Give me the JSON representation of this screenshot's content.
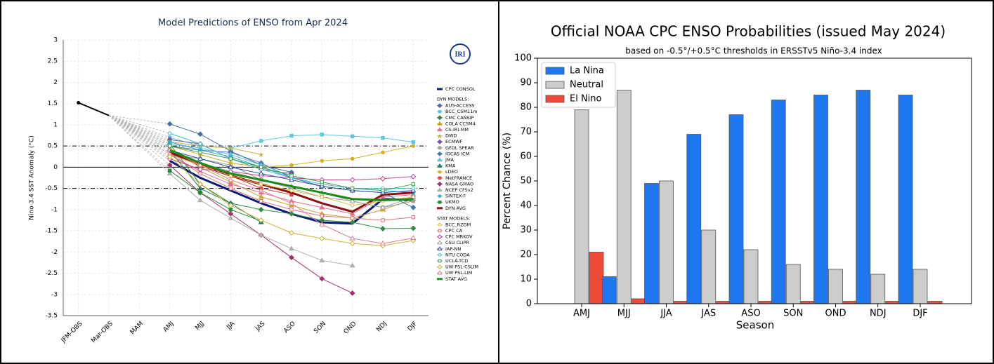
{
  "chart_data": [
    {
      "type": "line",
      "title": "Model Predictions of ENSO from Apr 2024",
      "ylabel": "Nino 3.4 SST Anomaly (°C)",
      "logo": "IRI",
      "categories": [
        "JFM-OBS",
        "Mar-OBS",
        "MAM",
        "AMJ",
        "MJJ",
        "JJA",
        "JAS",
        "ASO",
        "SON",
        "OND",
        "NDJ",
        "DJF"
      ],
      "ylim": [
        -3.5,
        3
      ],
      "yticks": [
        3,
        2.5,
        2,
        1.5,
        1,
        0.5,
        0,
        -0.5,
        -1,
        -1.5,
        -2,
        -2.5,
        -3,
        -3.5
      ],
      "grid": true,
      "zero_line": 0,
      "threshold_lines": [
        0.5,
        -0.5
      ],
      "observed": {
        "color": "#000000",
        "values": [
          1.52,
          1.22,
          null,
          null,
          null,
          null,
          null,
          null,
          null,
          null,
          null,
          null
        ]
      },
      "groups": [
        {
          "series": [
            {
              "name": "CPC CONSOL",
              "color": "#0a1a78",
              "marker": "none",
              "width": 3,
              "values": [
                null,
                null,
                null,
                0.15,
                -0.25,
                -0.55,
                -0.85,
                -1.1,
                -1.3,
                -1.33,
                -0.75,
                -0.78
              ]
            }
          ]
        },
        {
          "name": "DYN MODELS:",
          "series": [
            {
              "name": "AUS-ACCESS",
              "color": "#4a6fa5",
              "marker": "d",
              "values": [
                null,
                null,
                null,
                1.02,
                0.78,
                0.38,
                0.05,
                -0.12,
                null,
                null,
                null,
                null
              ]
            },
            {
              "name": "BCC_CSM11m",
              "color": "#5bc8d8",
              "marker": "s",
              "values": [
                null,
                null,
                null,
                0.7,
                0.5,
                0.45,
                0.62,
                0.74,
                0.77,
                0.73,
                0.69,
                0.59
              ]
            },
            {
              "name": "CMC CANSIP",
              "color": "#2e8b3e",
              "marker": "d",
              "values": [
                null,
                null,
                null,
                0.55,
                -0.4,
                -0.85,
                -1.0,
                -1.1,
                -1.25,
                -1.3,
                -1.45,
                -1.44
              ]
            },
            {
              "name": "COLA CCSM4",
              "color": "#c9a227",
              "marker": "^",
              "values": [
                null,
                null,
                null,
                0.45,
                0.0,
                -0.35,
                -0.7,
                -0.9,
                -1.1,
                -1.2,
                -1.0,
                -0.75
              ]
            },
            {
              "name": "CS-IRI-MM",
              "color": "#e07090",
              "marker": "^",
              "values": [
                null,
                null,
                null,
                0.3,
                -0.1,
                -0.4,
                -0.6,
                -0.8,
                -0.95,
                -1.1,
                -0.7,
                -0.65
              ]
            },
            {
              "name": "DWD",
              "color": "#c8b040",
              "marker": "*",
              "values": [
                null,
                null,
                null,
                0.6,
                0.5,
                0.45,
                0.3,
                null,
                null,
                null,
                null,
                null
              ]
            },
            {
              "name": "ECMWF",
              "color": "#7a4fa0",
              "marker": "d",
              "values": [
                null,
                null,
                null,
                0.65,
                0.55,
                0.2,
                -0.05,
                -0.15,
                null,
                null,
                null,
                null
              ]
            },
            {
              "name": "GFDL SPEAR",
              "color": "#a0a0a0",
              "marker": "s",
              "values": [
                null,
                null,
                null,
                0.3,
                0.2,
                0.05,
                -0.3,
                -0.5,
                -0.7,
                -0.8,
                -0.95,
                -0.8
              ]
            },
            {
              "name": "IOCAS ICM",
              "color": "#3a7ab0",
              "marker": "d",
              "values": [
                null,
                null,
                null,
                0.5,
                0.4,
                0.35,
                0.1,
                -0.25,
                -0.45,
                -0.55,
                -0.6,
                -0.95
              ]
            },
            {
              "name": "JMA",
              "color": "#70b8e0",
              "marker": "^",
              "values": [
                null,
                null,
                null,
                0.55,
                0.45,
                0.3,
                0.05,
                -0.2,
                null,
                null,
                null,
                null
              ]
            },
            {
              "name": "KMA",
              "color": "#1f7a6a",
              "marker": "^",
              "values": [
                null,
                null,
                null,
                0.4,
                -0.5,
                -0.85,
                -1.3,
                null,
                null,
                null,
                null,
                null
              ]
            },
            {
              "name": "LDEO",
              "color": "#d4b020",
              "marker": "o",
              "values": [
                null,
                null,
                null,
                0.5,
                0.3,
                0.1,
                0.0,
                0.05,
                0.15,
                0.2,
                0.35,
                0.5
              ]
            },
            {
              "name": "MetFRANCE",
              "color": "#e04040",
              "marker": "s",
              "values": [
                null,
                null,
                null,
                0.3,
                0.05,
                -0.2,
                -0.5,
                -0.65,
                null,
                null,
                null,
                null
              ]
            },
            {
              "name": "NASA GMAO",
              "color": "#a03070",
              "marker": "d",
              "values": [
                null,
                null,
                null,
                0.05,
                -0.6,
                -1.1,
                -1.6,
                -2.13,
                -2.63,
                -2.97,
                null,
                null
              ]
            },
            {
              "name": "NCEP CFSv2",
              "color": "#b0b0b0",
              "marker": "^",
              "values": [
                null,
                null,
                null,
                -0.15,
                -0.78,
                -1.2,
                -1.6,
                -1.92,
                -2.2,
                -2.32,
                null,
                null
              ]
            },
            {
              "name": "SINTEX-F",
              "color": "#30b0d0",
              "marker": "o",
              "values": [
                null,
                null,
                null,
                0.6,
                0.4,
                0.25,
                0.0,
                -0.25,
                -0.4,
                -0.5,
                -0.55,
                -0.6
              ]
            },
            {
              "name": "UKMO",
              "color": "#208a30",
              "marker": "s",
              "values": [
                null,
                null,
                null,
                -0.08,
                -0.6,
                -1.0,
                -1.27,
                null,
                null,
                null,
                null,
                null
              ]
            },
            {
              "name": "DYN AVG",
              "color": "#8b1010",
              "marker": "none",
              "width": 3,
              "values": [
                null,
                null,
                null,
                0.35,
                0.05,
                -0.2,
                -0.4,
                -0.6,
                -0.85,
                -1.05,
                -0.65,
                -0.6
              ]
            }
          ]
        },
        {
          "name": "STAT MODELS:",
          "hollow": true,
          "series": [
            {
              "name": "BCC_RZDM",
              "color": "#e0c040",
              "marker": "o",
              "values": [
                null,
                null,
                null,
                0.3,
                0.05,
                -0.2,
                -0.4,
                -0.55,
                -0.7,
                -0.9,
                -0.8,
                -0.7
              ]
            },
            {
              "name": "CPC CA",
              "color": "#e07080",
              "marker": "s",
              "values": [
                null,
                null,
                null,
                0.3,
                -0.15,
                -0.5,
                -0.8,
                -1.0,
                -1.15,
                -1.2,
                -1.25,
                -1.18
              ]
            },
            {
              "name": "CPC MRKOV",
              "color": "#c04090",
              "marker": "d",
              "values": [
                null,
                null,
                null,
                0.2,
                -0.05,
                -0.1,
                -0.2,
                -0.25,
                -0.3,
                -0.3,
                -0.27,
                -0.22
              ]
            },
            {
              "name": "CSU CLIPR",
              "color": "#a0a0a0",
              "marker": "^",
              "values": [
                null,
                null,
                null,
                0.4,
                0.1,
                -0.1,
                -0.3,
                -0.45,
                -0.6,
                -0.8,
                -0.95,
                -0.7
              ]
            },
            {
              "name": "IAP-NN",
              "color": "#3050a0",
              "marker": "^",
              "values": [
                null,
                null,
                null,
                0.4,
                0.2,
                0.0,
                -0.15,
                -0.3,
                -0.45,
                -0.55,
                -0.6,
                -0.55
              ]
            },
            {
              "name": "NTU CODA",
              "color": "#40c0d0",
              "marker": "o",
              "values": [
                null,
                null,
                null,
                0.8,
                0.55,
                0.2,
                -0.05,
                -0.25,
                -0.4,
                -0.5,
                -0.5,
                -0.5
              ]
            },
            {
              "name": "UCLA-TCD",
              "color": "#40a050",
              "marker": "s",
              "values": [
                null,
                null,
                null,
                0.5,
                0.35,
                0.2,
                0.0,
                -0.2,
                -0.35,
                -0.5,
                -0.55,
                -0.4
              ]
            },
            {
              "name": "UW PSL-CSLIM",
              "color": "#d0b030",
              "marker": "d",
              "values": [
                null,
                null,
                null,
                0.25,
                -0.4,
                -0.9,
                -1.25,
                -1.55,
                -1.68,
                -1.8,
                -1.85,
                -1.73
              ]
            },
            {
              "name": "UW PSL-LIM",
              "color": "#e08090",
              "marker": "^",
              "values": [
                null,
                null,
                null,
                0.4,
                0.05,
                -0.3,
                -0.55,
                -0.85,
                -1.35,
                -1.68,
                -1.8,
                -1.67
              ]
            },
            {
              "name": "STAT AVG",
              "color": "#1a8a1a",
              "marker": "none",
              "width": 3,
              "values": [
                null,
                null,
                null,
                0.4,
                0.1,
                -0.15,
                -0.3,
                -0.45,
                -0.6,
                -0.75,
                -0.78,
                -0.75
              ]
            }
          ]
        }
      ]
    },
    {
      "type": "bar",
      "title": "Official NOAA CPC ENSO Probabilities (issued May 2024)",
      "subtitle": "based on -0.5°/+0.5°C thresholds in ERSSTv5 Niño-3.4 index",
      "xlabel": "Season",
      "ylabel": "Percent Chance (%)",
      "legend": "upper left",
      "categories": [
        "AMJ",
        "MJJ",
        "JJA",
        "JAS",
        "ASO",
        "SON",
        "OND",
        "NDJ",
        "DJF"
      ],
      "ylim": [
        0,
        100
      ],
      "yticks": [
        0,
        10,
        20,
        30,
        40,
        50,
        60,
        70,
        80,
        90,
        100
      ],
      "series": [
        {
          "name": "La Nina",
          "color": "#1f77f0",
          "values": [
            0,
            11,
            49,
            69,
            77,
            83,
            85,
            87,
            85
          ]
        },
        {
          "name": "Neutral",
          "color": "#cccccc",
          "values": [
            79,
            87,
            50,
            30,
            22,
            16,
            14,
            12,
            14
          ]
        },
        {
          "name": "El Nino",
          "color": "#f04a3a",
          "values": [
            21,
            2,
            1,
            1,
            1,
            1,
            1,
            1,
            1
          ]
        }
      ]
    }
  ]
}
